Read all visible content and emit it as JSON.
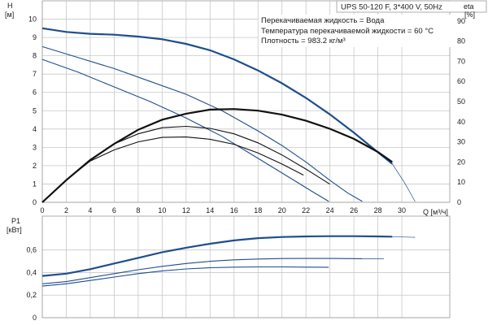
{
  "chart_data": {
    "type": "line",
    "title": "UPS 50-120 F, 3*400 V, 50Hz",
    "annotations": [
      "Перекачиваемая жидкость = Вода",
      "Температура перекачиваемой жидкости = 60 °C",
      "Плотность = 983.2 кг/м³"
    ],
    "colors": {
      "pump_curve": "#1f4e8c",
      "efficiency": "#111111",
      "grid": "#c8c8c8"
    },
    "head_panel": {
      "y_axis_label": [
        "H",
        "[м]"
      ],
      "y2_axis_label": [
        "eta",
        "[%]"
      ],
      "x_axis_label": "Q [м³/ч]",
      "xlim": [
        0,
        34
      ],
      "ylim": [
        0,
        11
      ],
      "y2lim": [
        0,
        100
      ],
      "x_ticks": [
        "0",
        "2",
        "4",
        "6",
        "8",
        "10",
        "12",
        "14",
        "16",
        "18",
        "20",
        "22",
        "24",
        "26",
        "28",
        "30"
      ],
      "y_ticks": [
        "0",
        "1",
        "2",
        "3",
        "4",
        "5",
        "6",
        "7",
        "8",
        "9",
        "10"
      ],
      "y2_ticks": [
        "0",
        "10",
        "20",
        "30",
        "40",
        "50",
        "60",
        "70",
        "80",
        "90"
      ],
      "head_series": [
        {
          "x": [
            0,
            2,
            4,
            6,
            8,
            10,
            12,
            14,
            16,
            18,
            20,
            22,
            24,
            26,
            27.5,
            29.2
          ],
          "y": [
            9.5,
            9.3,
            9.2,
            9.15,
            9.05,
            8.9,
            8.65,
            8.3,
            7.8,
            7.2,
            6.5,
            5.7,
            4.8,
            3.8,
            3.0,
            2.1
          ]
        },
        {
          "x": [
            0,
            3,
            6,
            9,
            12,
            15,
            18,
            20,
            22,
            24,
            25.5,
            26.7
          ],
          "y": [
            8.5,
            7.9,
            7.3,
            6.6,
            5.9,
            5.0,
            3.9,
            3.1,
            2.2,
            1.2,
            0.5,
            0.05
          ]
        },
        {
          "x": [
            0,
            3,
            6,
            9,
            12,
            15,
            17,
            19,
            21,
            22.5,
            23.9
          ],
          "y": [
            7.8,
            7.1,
            6.3,
            5.5,
            4.6,
            3.6,
            2.8,
            2.0,
            1.2,
            0.6,
            0.05
          ]
        }
      ],
      "head_runout": [
        {
          "x": [
            29.2,
            30.2,
            31.1
          ],
          "y": [
            2.1,
            1.1,
            0.05
          ]
        }
      ],
      "efficiency_series": [
        {
          "x": [
            0,
            2,
            4,
            6,
            8,
            10,
            12,
            14,
            16,
            18,
            20,
            22,
            24,
            26,
            28,
            29.2
          ],
          "y": [
            0,
            11,
            21,
            29,
            36,
            41,
            44,
            46,
            46.3,
            45.5,
            43.5,
            40.5,
            36.5,
            31.5,
            25,
            20
          ]
        },
        {
          "x": [
            0,
            2,
            4,
            6,
            8,
            10,
            12,
            14,
            16,
            18,
            20,
            22,
            24
          ],
          "y": [
            0,
            11,
            21,
            29,
            34,
            37,
            37.7,
            36.7,
            34,
            29.5,
            23.5,
            16.5,
            9
          ]
        },
        {
          "x": [
            0,
            2,
            4,
            6,
            8,
            10,
            12,
            14,
            16,
            18,
            20,
            21.8
          ],
          "y": [
            0,
            11,
            20.5,
            26,
            30,
            32.2,
            32.4,
            31.3,
            28.8,
            24.5,
            19,
            13.5
          ]
        }
      ]
    },
    "power_panel": {
      "y_axis_label": [
        "P1",
        "[кВт]"
      ],
      "ylim": [
        0,
        0.9
      ],
      "y_ticks": [
        "0",
        "0,2",
        "0,4",
        "0,6"
      ],
      "power_series": [
        {
          "x": [
            0,
            2,
            4,
            6,
            8,
            10,
            12,
            14,
            16,
            18,
            20,
            22,
            24,
            26,
            28,
            29.2
          ],
          "y": [
            0.37,
            0.39,
            0.43,
            0.48,
            0.53,
            0.58,
            0.62,
            0.655,
            0.685,
            0.705,
            0.715,
            0.72,
            0.722,
            0.722,
            0.72,
            0.718
          ]
        },
        {
          "x": [
            0,
            2,
            4,
            6,
            8,
            10,
            12,
            14,
            16,
            18,
            20,
            22,
            24,
            26.7
          ],
          "y": [
            0.3,
            0.32,
            0.355,
            0.39,
            0.425,
            0.455,
            0.48,
            0.5,
            0.513,
            0.52,
            0.524,
            0.525,
            0.525,
            0.523
          ]
        },
        {
          "x": [
            0,
            2,
            4,
            6,
            8,
            10,
            12,
            14,
            16,
            18,
            20,
            22,
            23.9
          ],
          "y": [
            0.28,
            0.3,
            0.33,
            0.36,
            0.39,
            0.415,
            0.432,
            0.443,
            0.448,
            0.45,
            0.45,
            0.448,
            0.447
          ]
        }
      ],
      "power_runout": [
        {
          "x": [
            29.2,
            31.1
          ],
          "y": [
            0.718,
            0.712
          ]
        },
        {
          "x": [
            26.7,
            28.5
          ],
          "y": [
            0.523,
            0.521
          ]
        }
      ]
    }
  }
}
